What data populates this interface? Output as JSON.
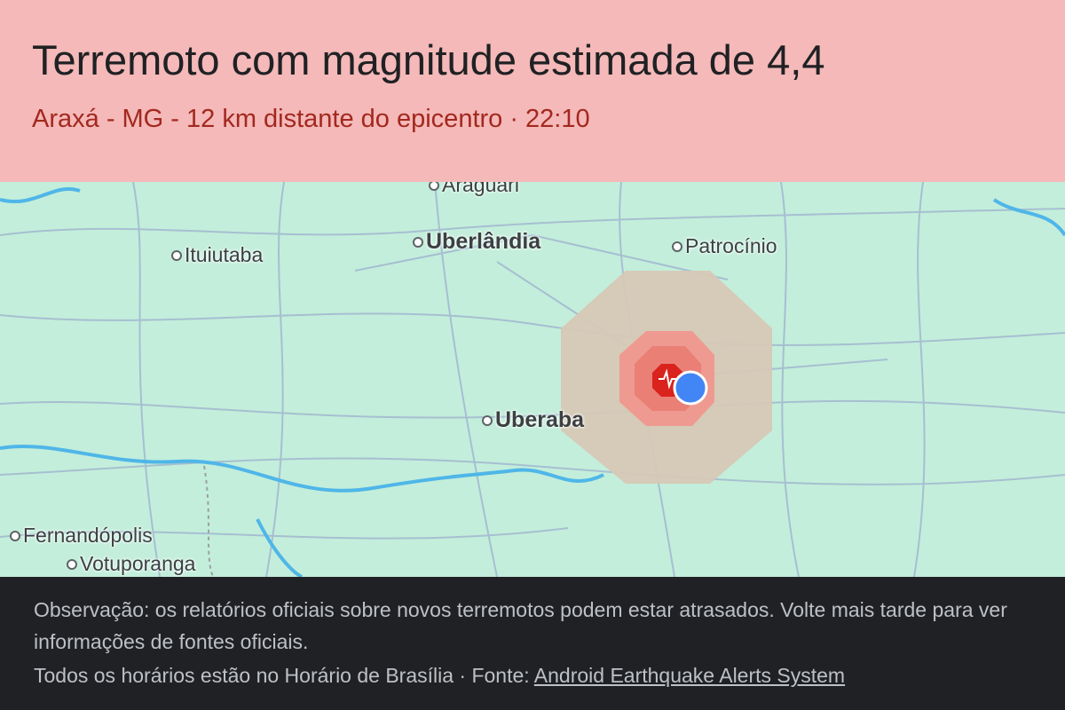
{
  "alert": {
    "title": "Terremoto com magnitude estimada de 4,4",
    "subtitle": "Araxá - MG - 12 km distante do epicentro · 22:10"
  },
  "map": {
    "cities": [
      {
        "name": "Araguari",
        "big": false
      },
      {
        "name": "Uberlândia",
        "big": true
      },
      {
        "name": "Patrocínio",
        "big": false
      },
      {
        "name": "Ituiutaba",
        "big": false
      },
      {
        "name": "Uberaba",
        "big": true
      },
      {
        "name": "Fernandópolis",
        "big": false
      },
      {
        "name": "Votuporanga",
        "big": false
      }
    ],
    "icons": [
      "epicenter-icon",
      "user-location-icon"
    ],
    "colors": {
      "land": "#c3eedb",
      "outer_zone": "#d6c8b6",
      "inner_zone": "#ef8a80",
      "epicenter": "#d9342b",
      "user_location": "#4285f4"
    }
  },
  "footer": {
    "note": "Observação: os relatórios oficiais sobre novos terremotos podem estar atrasados. Volte mais tarde para ver",
    "note_cont": "informações de fontes oficiais.",
    "timezone_text": "Todos os horários estão no Horário de Brasília · Fonte: ",
    "source_link": "Android Earthquake Alerts System"
  }
}
